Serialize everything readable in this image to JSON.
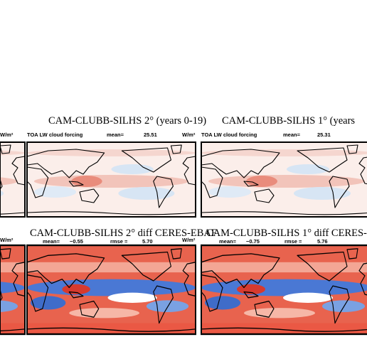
{
  "top_row": [
    {
      "unit": "W/m²"
    },
    {
      "title": "CAM-CLUBB-SILHS 2° (years 0-19)",
      "subtitle": "TOA LW cloud forcing",
      "mean_label": "mean=",
      "mean": "25.51",
      "unit": "W/m²"
    },
    {
      "title": "CAM-CLUBB-SILHS 1° (years",
      "subtitle": "TOA LW cloud forcing",
      "mean_label": "mean=",
      "mean": "25.31"
    }
  ],
  "bottom_row": [
    {
      "unit": "W/m²"
    },
    {
      "title": "CAM-CLUBB-SILHS 2° diff CERES-EBAF",
      "mean_label": "mean=",
      "mean": "−0.55",
      "rmse_label": "rmse =",
      "rmse": "5.70",
      "unit": "W/m²"
    },
    {
      "title": "CAM-CLUBB-SILHS 1° diff CERES-",
      "mean_label": "mean=",
      "mean": "−0.75",
      "rmse_label": "rmse =",
      "rmse": "5.76"
    }
  ]
}
